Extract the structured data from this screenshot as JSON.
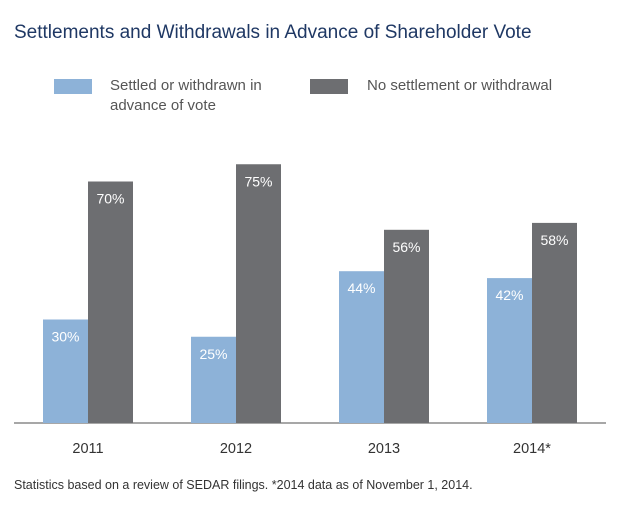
{
  "chart_data": {
    "type": "bar",
    "title": "Settlements and Withdrawals in Advance of Shareholder Vote",
    "categories": [
      "2011",
      "2012",
      "2013",
      "2014*"
    ],
    "series": [
      {
        "name": "Settled or withdrawn in advance of vote",
        "values": [
          30,
          25,
          44,
          42
        ],
        "labels": [
          "30%",
          "25%",
          "44%",
          "42%"
        ],
        "color": "#8db2d8"
      },
      {
        "name": "No settlement or withdrawal",
        "values": [
          70,
          75,
          56,
          58
        ],
        "labels": [
          "70%",
          "75%",
          "56%",
          "58%"
        ],
        "color": "#6d6e71"
      }
    ],
    "ylim": [
      0,
      80
    ],
    "legend_position": "top",
    "grid": false,
    "footnote": "Statistics based on a review of SEDAR filings. *2014 data as of November 1, 2014."
  },
  "legend": {
    "settled_line1": "Settled or withdrawn in",
    "settled_line2": "advance of vote",
    "no_settlement": "No settlement or withdrawal"
  }
}
